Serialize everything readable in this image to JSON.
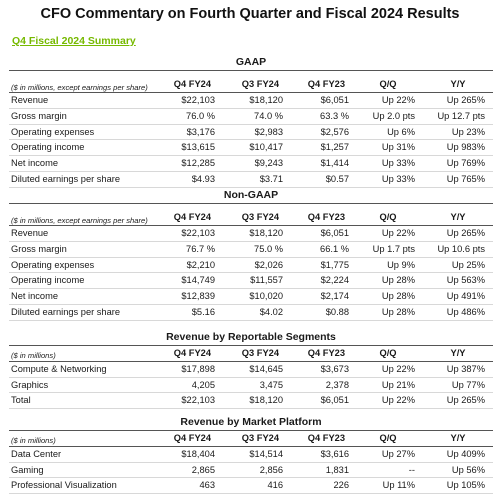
{
  "title": "CFO Commentary on Fourth Quarter and Fiscal 2024 Results",
  "subtitle": "Q4 Fiscal 2024 Summary",
  "columns": [
    "Q4 FY24",
    "Q3 FY24",
    "Q4 FY23",
    "Q/Q",
    "Y/Y"
  ],
  "sections": [
    {
      "title": "GAAP",
      "note": "($ in millions, except earnings per share)",
      "rows": [
        [
          "Revenue",
          "$22,103",
          "$18,120",
          "$6,051",
          "Up 22%",
          "Up 265%"
        ],
        [
          "Gross margin",
          "76.0 %",
          "74.0 %",
          "63.3 %",
          "Up 2.0 pts",
          "Up 12.7 pts"
        ],
        [
          "Operating expenses",
          "$3,176",
          "$2,983",
          "$2,576",
          "Up 6%",
          "Up 23%"
        ],
        [
          "Operating income",
          "$13,615",
          "$10,417",
          "$1,257",
          "Up 31%",
          "Up 983%"
        ],
        [
          "Net income",
          "$12,285",
          "$9,243",
          "$1,414",
          "Up 33%",
          "Up 769%"
        ],
        [
          "Diluted earnings per share",
          "$4.93",
          "$3.71",
          "$0.57",
          "Up 33%",
          "Up 765%"
        ]
      ]
    },
    {
      "title": "Non-GAAP",
      "note": "($ in millions, except earnings per share)",
      "rows": [
        [
          "Revenue",
          "$22,103",
          "$18,120",
          "$6,051",
          "Up 22%",
          "Up 265%"
        ],
        [
          "Gross margin",
          "76.7 %",
          "75.0 %",
          "66.1 %",
          "Up 1.7 pts",
          "Up 10.6 pts"
        ],
        [
          "Operating expenses",
          "$2,210",
          "$2,026",
          "$1,775",
          "Up 9%",
          "Up 25%"
        ],
        [
          "Operating income",
          "$14,749",
          "$11,557",
          "$2,224",
          "Up 28%",
          "Up 563%"
        ],
        [
          "Net income",
          "$12,839",
          "$10,020",
          "$2,174",
          "Up 28%",
          "Up 491%"
        ],
        [
          "Diluted earnings per share",
          "$5.16",
          "$4.02",
          "$0.88",
          "Up 28%",
          "Up 486%"
        ]
      ]
    },
    {
      "title": "Revenue by Reportable Segments",
      "note": "($ in millions)",
      "rows": [
        [
          "Compute & Networking",
          "$17,898",
          "$14,645",
          "$3,673",
          "Up 22%",
          "Up 387%"
        ],
        [
          "Graphics",
          "4,205",
          "3,475",
          "2,378",
          "Up 21%",
          "Up 77%"
        ],
        [
          "Total",
          "$22,103",
          "$18,120",
          "$6,051",
          "Up 22%",
          "Up 265%"
        ]
      ]
    },
    {
      "title": "Revenue by Market Platform",
      "note": "($ in millions)",
      "rows": [
        [
          "Data Center",
          "$18,404",
          "$14,514",
          "$3,616",
          "Up 27%",
          "Up 409%"
        ],
        [
          "Gaming",
          "2,865",
          "2,856",
          "1,831",
          "--",
          "Up 56%"
        ],
        [
          "Professional Visualization",
          "463",
          "416",
          "226",
          "Up 11%",
          "Up 105%"
        ]
      ]
    }
  ]
}
